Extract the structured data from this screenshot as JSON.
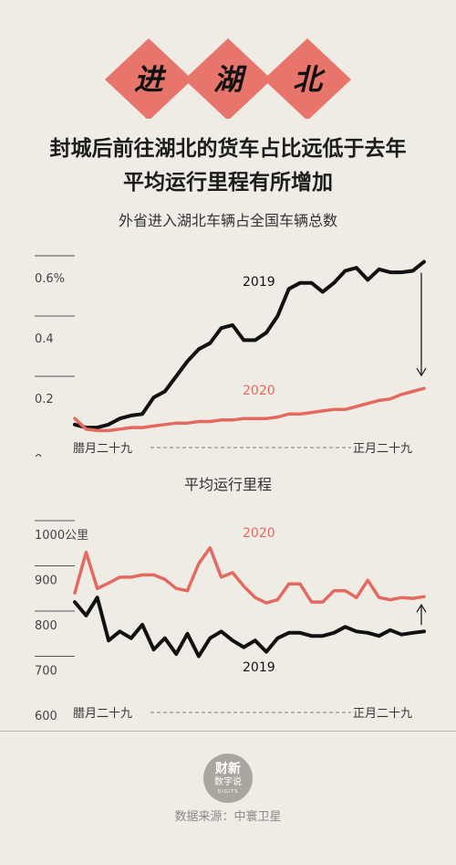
{
  "banner": {
    "chars": [
      "进",
      "湖",
      "北"
    ],
    "color": "#e7756b",
    "char_color": "#111111"
  },
  "headline": {
    "line1": "封城后前往湖北的货车占比远低于去年",
    "line2": "平均运行里程有所增加"
  },
  "colors": {
    "series_2019": "#111111",
    "series_2020": "#e46a60",
    "axis": "#555555"
  },
  "chart_data": [
    {
      "type": "line",
      "title": "外省进入湖北车辆占全国车辆总数",
      "x_start_label": "腊月二十九",
      "x_end_label": "正月二十九",
      "ylim": [
        0,
        0.6
      ],
      "y_ticks": [
        {
          "value": 0,
          "label": "0"
        },
        {
          "value": 0.2,
          "label": "0.2"
        },
        {
          "value": 0.4,
          "label": "0.4"
        },
        {
          "value": 0.6,
          "label": "0.6%"
        }
      ],
      "series": [
        {
          "name": "2019",
          "values": [
            0.04,
            0.03,
            0.03,
            0.04,
            0.06,
            0.07,
            0.075,
            0.13,
            0.15,
            0.2,
            0.25,
            0.29,
            0.31,
            0.36,
            0.37,
            0.32,
            0.32,
            0.345,
            0.4,
            0.49,
            0.51,
            0.51,
            0.48,
            0.51,
            0.55,
            0.56,
            0.52,
            0.555,
            0.545,
            0.545,
            0.55,
            0.58
          ]
        },
        {
          "name": "2020",
          "values": [
            0.06,
            0.025,
            0.02,
            0.02,
            0.025,
            0.03,
            0.03,
            0.035,
            0.04,
            0.045,
            0.045,
            0.05,
            0.05,
            0.055,
            0.055,
            0.06,
            0.06,
            0.06,
            0.065,
            0.075,
            0.075,
            0.08,
            0.085,
            0.09,
            0.09,
            0.1,
            0.11,
            0.12,
            0.125,
            0.14,
            0.15,
            0.16
          ]
        }
      ]
    },
    {
      "type": "line",
      "title": "平均运行里程",
      "x_start_label": "腊月二十九",
      "x_end_label": "正月二十九",
      "ylim": [
        600,
        1000
      ],
      "y_ticks": [
        {
          "value": 600,
          "label": "600"
        },
        {
          "value": 700,
          "label": "700"
        },
        {
          "value": 800,
          "label": "800"
        },
        {
          "value": 900,
          "label": "900"
        },
        {
          "value": 1000,
          "label": "1000公里"
        }
      ],
      "series": [
        {
          "name": "2019",
          "values": [
            820,
            790,
            830,
            735,
            755,
            740,
            770,
            715,
            740,
            705,
            750,
            700,
            740,
            755,
            735,
            720,
            735,
            710,
            740,
            752,
            752,
            745,
            745,
            752,
            765,
            755,
            752,
            745,
            758,
            748,
            752,
            755
          ]
        },
        {
          "name": "2020",
          "values": [
            840,
            930,
            850,
            862,
            875,
            875,
            880,
            880,
            870,
            850,
            845,
            905,
            940,
            875,
            885,
            855,
            830,
            818,
            825,
            860,
            860,
            820,
            820,
            845,
            845,
            830,
            868,
            830,
            825,
            830,
            828,
            832
          ]
        }
      ]
    }
  ],
  "footer": {
    "logo_line1": "财新",
    "logo_line2": "数字说",
    "logo_line3": "DIGITS",
    "source": "数据来源：中寰卫星"
  }
}
